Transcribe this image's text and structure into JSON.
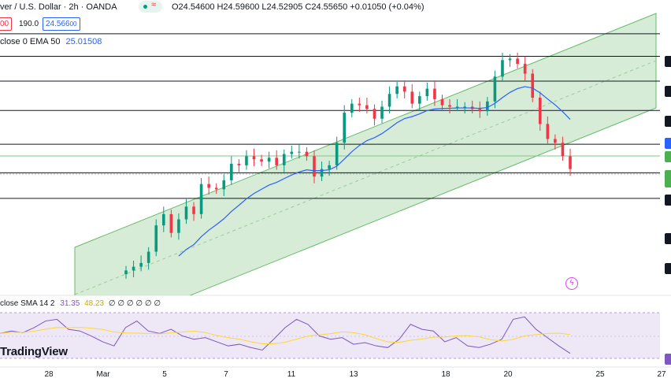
{
  "header": {
    "symbol_line": "ver / U.S. Dollar · 2h · OANDA",
    "ohlc": "O24.54600 H24.59600 L24.52905 C24.55650 +0.01050 (+0.04%)",
    "sell_price": "00",
    "spread": "190.0",
    "buy_price": "24.566",
    "buy_price_suffix": "00",
    "ema_label": "close 0 EMA 50",
    "ema_value": "25.01508"
  },
  "rsi_panel": {
    "label": "close SMA 14 2",
    "rsi_value": "31.35",
    "sma_value": "48.23",
    "placeholders": "∅ ∅ ∅ ∅ ∅ ∅"
  },
  "logo_text": "TradingView",
  "x_axis_labels": [
    "28",
    "Mar",
    "5",
    "7",
    "11",
    "13",
    "18",
    "20",
    "25",
    "27"
  ],
  "colors": {
    "up": "#089981",
    "down": "#f23645",
    "channel_fill": "#c8e6c9",
    "channel_line": "#66bb6a",
    "ema": "#2962ff",
    "rsi": "#7e57c2",
    "rsi_sma": "#fdd835",
    "rsi_band": "#ede7f6"
  },
  "chart_data": {
    "type": "candlestick",
    "title": "U.S. Dollar · 2h · OANDA",
    "timeframe": "2h",
    "price_range": [
      22.9,
      26.8
    ],
    "indicators": [
      "EMA 50",
      "RSI 14 with SMA 14"
    ],
    "ema_last": 25.01508,
    "rsi_last": 31.35,
    "rsi_sma_last": 48.23,
    "last_candle": {
      "open": 24.546,
      "high": 24.596,
      "low": 24.52905,
      "close": 24.5565
    },
    "horizontal_levels": [
      26.35,
      26.05,
      25.72,
      25.33,
      24.88,
      24.5,
      24.16
    ],
    "close_series": [
      23.2,
      23.25,
      23.3,
      23.45,
      23.8,
      23.95,
      23.7,
      23.88,
      24.05,
      23.95,
      24.35,
      24.3,
      24.28,
      24.4,
      24.62,
      24.6,
      24.72,
      24.68,
      24.65,
      24.7,
      24.6,
      24.75,
      24.78,
      24.78,
      24.72,
      24.45,
      24.55,
      24.6,
      24.9,
      25.3,
      25.42,
      25.4,
      25.35,
      25.22,
      25.38,
      25.55,
      25.65,
      25.58,
      25.42,
      25.52,
      25.62,
      25.48,
      25.4,
      25.38,
      25.38,
      25.38,
      25.35,
      25.32,
      25.45,
      25.78,
      26.0,
      26.02,
      25.95,
      25.82,
      25.5,
      25.15,
      24.95,
      24.9,
      24.72,
      24.55
    ],
    "rsi_series": [
      55,
      58,
      56,
      62,
      70,
      72,
      60,
      58,
      52,
      45,
      40,
      62,
      70,
      58,
      55,
      60,
      52,
      48,
      50,
      45,
      40,
      42,
      38,
      35,
      48,
      62,
      72,
      66,
      52,
      48,
      50,
      42,
      44,
      40,
      38,
      48,
      66,
      60,
      58,
      45,
      50,
      40,
      38,
      42,
      48,
      72,
      75,
      60,
      50,
      40,
      31
    ]
  }
}
